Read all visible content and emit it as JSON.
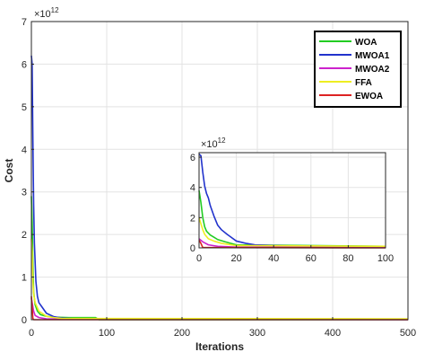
{
  "chart_data": [
    {
      "type": "line",
      "xlabel": "Iterations",
      "ylabel": "Cost",
      "y_multiplier": "×10",
      "y_exponent": "12",
      "xlim": [
        0,
        500
      ],
      "ylim": [
        0,
        7
      ],
      "xticks": [
        0,
        100,
        200,
        300,
        400,
        500
      ],
      "yticks": [
        0,
        1,
        2,
        3,
        4,
        5,
        6,
        7
      ],
      "grid": true,
      "legend_position": "top-right",
      "series": [
        {
          "name": "WOA",
          "color": "#22cc22",
          "x": [
            0,
            1,
            2,
            3,
            5,
            8,
            12,
            20,
            30,
            50,
            85,
            90,
            500
          ],
          "y": [
            2.9,
            2.3,
            1.3,
            0.65,
            0.35,
            0.2,
            0.12,
            0.08,
            0.06,
            0.05,
            0.05,
            0.0,
            0.0
          ]
        },
        {
          "name": "MWOA1",
          "color": "#2233cc",
          "x": [
            0,
            1,
            2,
            3,
            4,
            6,
            8,
            10,
            14,
            20,
            30,
            40,
            60,
            80,
            100,
            500
          ],
          "y": [
            6.2,
            6.0,
            4.2,
            2.7,
            1.8,
            0.9,
            0.55,
            0.4,
            0.3,
            0.15,
            0.07,
            0.04,
            0.02,
            0.01,
            0.01,
            0.01
          ]
        },
        {
          "name": "MWOA2",
          "color": "#cc22cc",
          "x": [
            0,
            1,
            2,
            3,
            5,
            10,
            20,
            500
          ],
          "y": [
            0.5,
            0.4,
            0.3,
            0.2,
            0.1,
            0.05,
            0.02,
            0.0
          ]
        },
        {
          "name": "FFA",
          "color": "#eeee22",
          "x": [
            0,
            1,
            2,
            3,
            5,
            10,
            20,
            30,
            40,
            500
          ],
          "y": [
            1.9,
            1.6,
            0.9,
            0.6,
            0.4,
            0.2,
            0.08,
            0.05,
            0.03,
            0.02
          ]
        },
        {
          "name": "EWOA",
          "color": "#dd2222",
          "x": [
            0,
            1,
            2,
            3,
            500
          ],
          "y": [
            0.55,
            0.3,
            0.03,
            0.0,
            0.0
          ]
        }
      ]
    },
    {
      "type": "line",
      "xlim": [
        0,
        100
      ],
      "ylim": [
        0,
        6.3
      ],
      "xticks": [
        0,
        20,
        40,
        60,
        80,
        100
      ],
      "yticks": [
        0,
        2,
        4,
        6
      ],
      "y_multiplier": "×10",
      "y_exponent": "12",
      "grid": true,
      "series": [
        {
          "color": "#22cc22",
          "x": [
            0,
            1,
            2,
            3,
            4,
            6,
            8,
            10,
            14,
            20,
            100
          ],
          "y": [
            3.8,
            3.0,
            2.0,
            1.4,
            1.1,
            0.85,
            0.7,
            0.55,
            0.4,
            0.2,
            0.1
          ]
        },
        {
          "color": "#2233cc",
          "x": [
            0,
            1,
            2,
            3,
            4,
            5,
            6,
            8,
            10,
            12,
            15,
            20,
            25,
            30,
            40,
            60,
            100
          ],
          "y": [
            6.2,
            6.1,
            5.0,
            4.1,
            3.6,
            3.3,
            2.8,
            2.1,
            1.5,
            1.2,
            0.9,
            0.45,
            0.3,
            0.2,
            0.15,
            0.1,
            0.1
          ]
        },
        {
          "color": "#cc22cc",
          "x": [
            0,
            2,
            5,
            10,
            20,
            100
          ],
          "y": [
            0.6,
            0.4,
            0.2,
            0.1,
            0.05,
            0.05
          ]
        },
        {
          "color": "#eeee22",
          "x": [
            0,
            1,
            2,
            3,
            5,
            8,
            12,
            20,
            100
          ],
          "y": [
            2.0,
            1.6,
            1.2,
            0.9,
            0.6,
            0.45,
            0.3,
            0.15,
            0.1
          ]
        },
        {
          "color": "#dd2222",
          "x": [
            0,
            1,
            2,
            100
          ],
          "y": [
            0.5,
            0.3,
            0.02,
            0.0
          ]
        }
      ]
    }
  ]
}
